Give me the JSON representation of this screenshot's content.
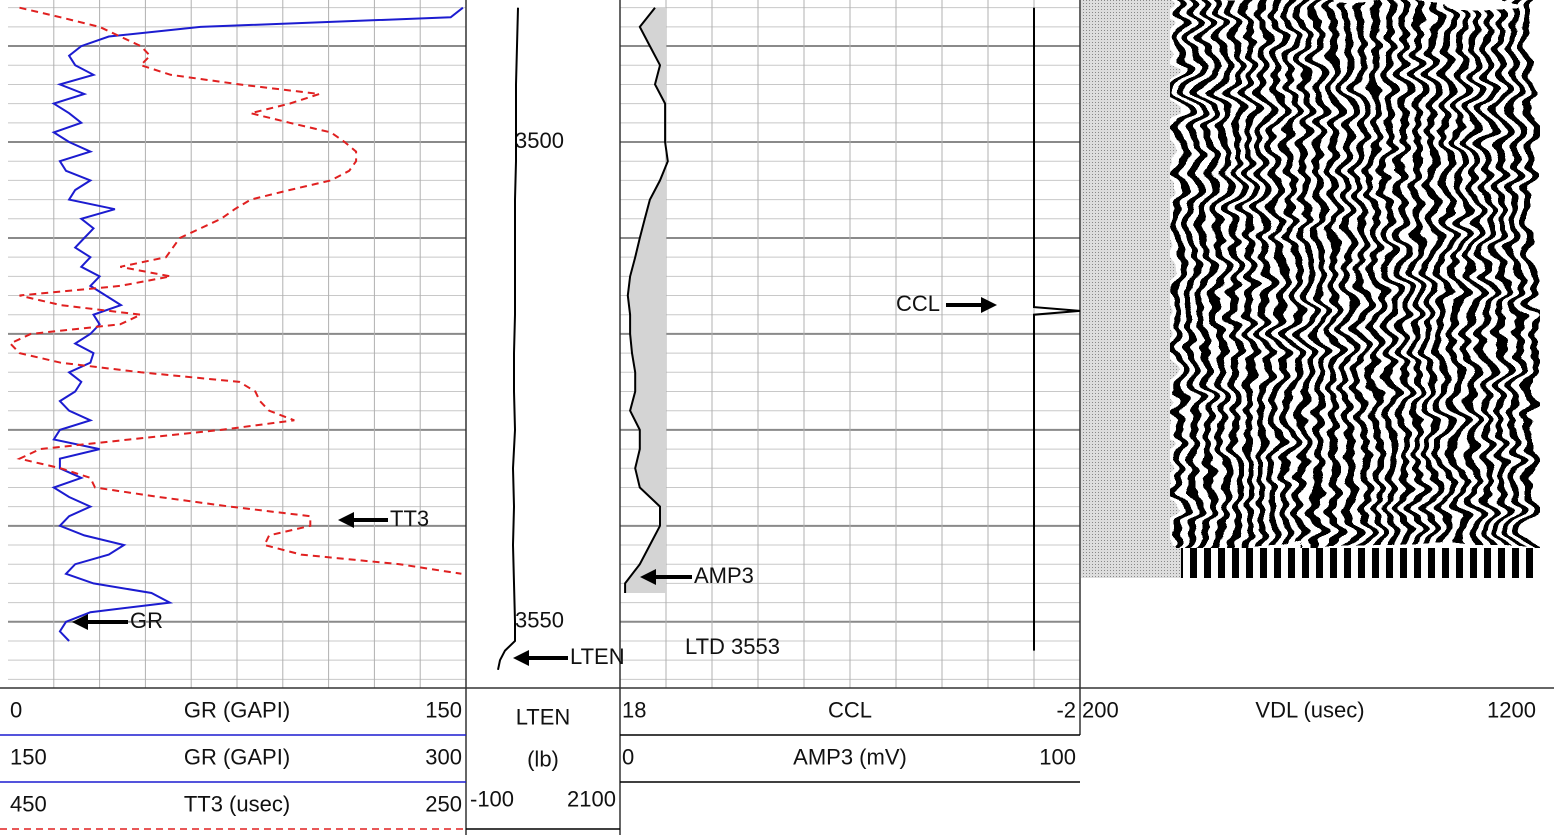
{
  "chart_data": {
    "type": "well-log",
    "ylim": [
      3485.2,
      3556.9
    ],
    "yticks": [
      3500,
      3550
    ],
    "annotation": "LTD 3553",
    "tracks": [
      {
        "grid": true,
        "curves": [
          {
            "name": "GR (GAPI)",
            "label": "GR",
            "color": "#1c1cd0",
            "style": "solid",
            "xlim": [
              0,
              150
            ],
            "wrap_xlim": [
              150,
              300
            ],
            "depth": [
              3486,
              3487,
              3488,
              3489,
              3490,
              3491,
              3492,
              3493,
              3494,
              3495,
              3496,
              3497,
              3498,
              3499,
              3500,
              3501,
              3502,
              3503,
              3504,
              3505,
              3506,
              3507,
              3508,
              3509,
              3510,
              3511,
              3512,
              3513,
              3514,
              3515,
              3516,
              3517,
              3518,
              3519,
              3520,
              3521,
              3522,
              3523,
              3524,
              3525,
              3526,
              3527,
              3528,
              3529,
              3530,
              3531,
              3532,
              3533,
              3534,
              3535,
              3536,
              3537,
              3538,
              3539,
              3540,
              3541,
              3542,
              3543,
              3544,
              3545,
              3546,
              3547,
              3548,
              3549,
              3550,
              3551,
              3552
            ],
            "values": [
              149,
              145,
              63,
              33,
              24,
              20,
              22,
              28,
              17,
              25,
              15,
              20,
              24,
              15,
              20,
              27,
              17,
              19,
              27,
              22,
              20,
              35,
              24,
              28,
              25,
              22,
              27,
              24,
              30,
              27,
              32,
              37,
              28,
              30,
              27,
              22,
              28,
              27,
              20,
              24,
              22,
              17,
              20,
              27,
              17,
              15,
              30,
              17,
              17,
              24,
              15,
              20,
              27,
              20,
              17,
              25,
              38,
              33,
              22,
              19,
              28,
              47,
              53,
              27,
              19,
              17,
              20
            ]
          },
          {
            "name": "TT3 (usec)",
            "label": "TT3",
            "color": "#e02020",
            "style": "dashed",
            "xlim": [
              450,
              250
            ],
            "depth": [
              3486,
              3487,
              3488,
              3489,
              3490,
              3491,
              3492,
              3493,
              3494,
              3495,
              3496,
              3497,
              3498,
              3499,
              3500,
              3501,
              3502,
              3503,
              3504,
              3505,
              3506,
              3507,
              3508,
              3509,
              3510,
              3511,
              3512,
              3513,
              3514,
              3515,
              3516,
              3517,
              3518,
              3519,
              3520,
              3521,
              3522,
              3523,
              3524,
              3525,
              3526,
              3527,
              3528,
              3529,
              3530,
              3531,
              3532,
              3533,
              3534,
              3535,
              3536,
              3537,
              3538,
              3539,
              3540,
              3541,
              3542,
              3543,
              3544,
              3545
            ],
            "values": [
              445,
              427,
              410,
              401,
              392,
              388,
              392,
              379,
              349,
              314,
              327,
              344,
              327,
              309,
              303,
              298,
              298,
              301,
              309,
              327,
              344,
              351,
              357,
              366,
              375,
              378,
              381,
              401,
              379,
              401,
              445,
              427,
              392,
              401,
              440,
              449,
              445,
              427,
              392,
              349,
              342,
              340,
              336,
              325,
              357,
              397,
              436,
              445,
              427,
              414,
              412,
              384,
              353,
              318,
              318,
              336,
              338,
              322,
              279,
              252
            ]
          }
        ]
      },
      {
        "grid": false,
        "curves": [
          {
            "name": "LTEN",
            "unit": "(lb)",
            "label": "LTEN",
            "color": "#000000",
            "style": "solid",
            "xlim": [
              -100,
              2100
            ],
            "depth": [
              3486,
              3490,
              3494,
              3498,
              3502,
              3506,
              3510,
              3514,
              3518,
              3522,
              3526,
              3530,
              3534,
              3538,
              3542,
              3546,
              3550,
              3552,
              3553,
              3554,
              3555
            ],
            "values": [
              643,
              629,
              614,
              614,
              614,
              600,
              600,
              600,
              600,
              586,
              586,
              600,
              571,
              586,
              571,
              586,
              600,
              600,
              457,
              386,
              357
            ]
          }
        ]
      },
      {
        "grid": true,
        "curves": [
          {
            "name": "CCL",
            "label": "CCL",
            "color": "#000000",
            "style": "solid",
            "xlim": [
              18,
              -2
            ],
            "depth": [
              3486,
              3517.2,
              3517.6,
              3518,
              3553
            ],
            "values": [
              0,
              0,
              -2,
              0,
              0
            ]
          },
          {
            "name": "AMP3 (mV)",
            "label": "AMP3",
            "color": "#000000",
            "style": "solid",
            "fill": "#d4d4d4",
            "xlim": [
              0,
              100
            ],
            "depth": [
              3486,
              3488,
              3490,
              3492,
              3494,
              3496,
              3498,
              3500,
              3502,
              3504,
              3506,
              3508,
              3510,
              3512,
              3514,
              3516,
              3518,
              3520,
              3522,
              3524,
              3526,
              3528,
              3530,
              3532,
              3534,
              3536,
              3538,
              3540,
              3542,
              3544,
              3546,
              3547
            ],
            "values": [
              7.6,
              4.3,
              6.5,
              8.7,
              7.6,
              9.8,
              9.8,
              9.8,
              10.4,
              8.7,
              6.5,
              5.4,
              4.3,
              3.3,
              2.2,
              1.7,
              2.2,
              2.2,
              2.6,
              3.3,
              3.3,
              2.2,
              4.3,
              4.3,
              3.3,
              4.3,
              8.7,
              8.7,
              6.5,
              4.3,
              1.1,
              1.1
            ]
          }
        ]
      },
      {
        "grid": false,
        "curves": [
          {
            "name": "VDL (usec)",
            "xlim": [
              200,
              1200
            ]
          }
        ]
      }
    ]
  }
}
